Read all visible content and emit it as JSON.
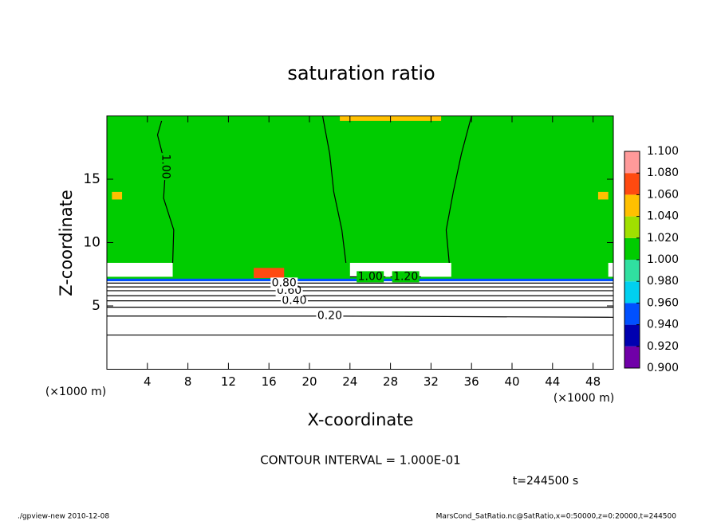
{
  "chart_data": {
    "type": "contour",
    "title": "saturation ratio",
    "xlabel": "X-coordinate",
    "ylabel": "Z-coordinate",
    "x_unit": "(×1000 m)",
    "xlim": [
      0,
      50
    ],
    "xticks": [
      4,
      8,
      12,
      16,
      20,
      24,
      28,
      32,
      36,
      40,
      44,
      48
    ],
    "ylim": [
      0,
      20
    ],
    "yticks": [
      5,
      10,
      15
    ],
    "colorbar": {
      "ticks": [
        {
          "value": 0.9,
          "label": "0.900"
        },
        {
          "value": 0.92,
          "label": "0.920"
        },
        {
          "value": 0.94,
          "label": "0.940"
        },
        {
          "value": 0.96,
          "label": "0.960"
        },
        {
          "value": 0.98,
          "label": "0.980"
        },
        {
          "value": 1.0,
          "label": "1.000"
        },
        {
          "value": 1.02,
          "label": "1.020"
        },
        {
          "value": 1.04,
          "label": "1.040"
        },
        {
          "value": 1.06,
          "label": "1.060"
        },
        {
          "value": 1.08,
          "label": "1.080"
        },
        {
          "value": 1.1,
          "label": "1.100"
        }
      ],
      "colors": [
        "#7000a8",
        "#0000b0",
        "#0050ff",
        "#00d0f0",
        "#30e0a0",
        "#00cc00",
        "#a0e000",
        "#ffc000",
        "#ff4a10",
        "#ff9a9a"
      ]
    },
    "regions": [
      {
        "x": [
          0,
          50
        ],
        "z": [
          7.1,
          20
        ],
        "value": 1.0
      },
      {
        "x": [
          0,
          50
        ],
        "z": [
          0,
          7.1
        ],
        "value": 0.5
      },
      {
        "x": [
          0,
          50
        ],
        "z": [
          6.95,
          7.15
        ],
        "value": 0.95
      },
      {
        "x": [
          0,
          6.5
        ],
        "z": [
          7.3,
          8.4
        ],
        "value": 1.2
      },
      {
        "x": [
          24,
          34
        ],
        "z": [
          7.3,
          8.4
        ],
        "value": 1.2
      },
      {
        "x": [
          49.5,
          50
        ],
        "z": [
          7.3,
          8.4
        ],
        "value": 1.2
      },
      {
        "x": [
          14.5,
          17.5
        ],
        "z": [
          7.2,
          8.0
        ],
        "value": 1.07
      },
      {
        "x": [
          23,
          33
        ],
        "z": [
          19.6,
          20
        ],
        "value": 1.05
      },
      {
        "x": [
          0.5,
          1.5
        ],
        "z": [
          13.4,
          14.0
        ],
        "value": 1.05
      },
      {
        "x": [
          48.5,
          49.5
        ],
        "z": [
          13.4,
          14.0
        ],
        "value": 1.05
      }
    ],
    "contours": [
      {
        "x": [
          0,
          22,
          50
        ],
        "z": [
          2.7,
          2.7,
          2.7
        ]
      },
      {
        "label": "0.20",
        "x": [
          0,
          22,
          50
        ],
        "z": [
          4.2,
          4.2,
          4.1
        ]
      },
      {
        "x": [
          0,
          22,
          50
        ],
        "z": [
          4.9,
          4.9,
          4.9
        ]
      },
      {
        "label": "0.40",
        "x": [
          0,
          18.5,
          50
        ],
        "z": [
          5.4,
          5.4,
          5.4
        ]
      },
      {
        "x": [
          0,
          22,
          50
        ],
        "z": [
          5.8,
          5.8,
          5.8
        ]
      },
      {
        "label": "0.60",
        "x": [
          0,
          18,
          50
        ],
        "z": [
          6.2,
          6.2,
          6.2
        ]
      },
      {
        "x": [
          0,
          22,
          50
        ],
        "z": [
          6.5,
          6.5,
          6.5
        ]
      },
      {
        "label": "0.80",
        "x": [
          0,
          17.5,
          50
        ],
        "z": [
          6.8,
          6.8,
          6.8
        ]
      },
      {
        "label": "1.00",
        "x": [
          6.5,
          6.6,
          5.6,
          5.8,
          5.0,
          5.4
        ],
        "z": [
          8.4,
          11,
          13.5,
          16,
          18.5,
          19.6
        ]
      },
      {
        "x": [
          23.6,
          23.2,
          22.4,
          22.0,
          21.3
        ],
        "z": [
          8.4,
          11,
          14,
          17,
          20
        ]
      },
      {
        "x": [
          33.8,
          33.5,
          34.2,
          35.0,
          36.0
        ],
        "z": [
          8.4,
          11,
          14,
          17,
          20
        ]
      },
      {
        "label": "1.00",
        "x": [
          24,
          26,
          27.5
        ],
        "z": [
          7.3,
          7.3,
          7.3
        ]
      },
      {
        "label": "1.20",
        "x": [
          28,
          29.5,
          31
        ],
        "z": [
          7.3,
          7.3,
          7.3
        ]
      }
    ],
    "contour_interval": "CONTOUR INTERVAL = 1.000E-01",
    "time": "t=244500 s",
    "footer_left": "./gpview-new   2010-12-08",
    "footer_right": "MarsCond_SatRatio.nc@SatRatio,x=0:50000,z=0:20000,t=244500"
  }
}
